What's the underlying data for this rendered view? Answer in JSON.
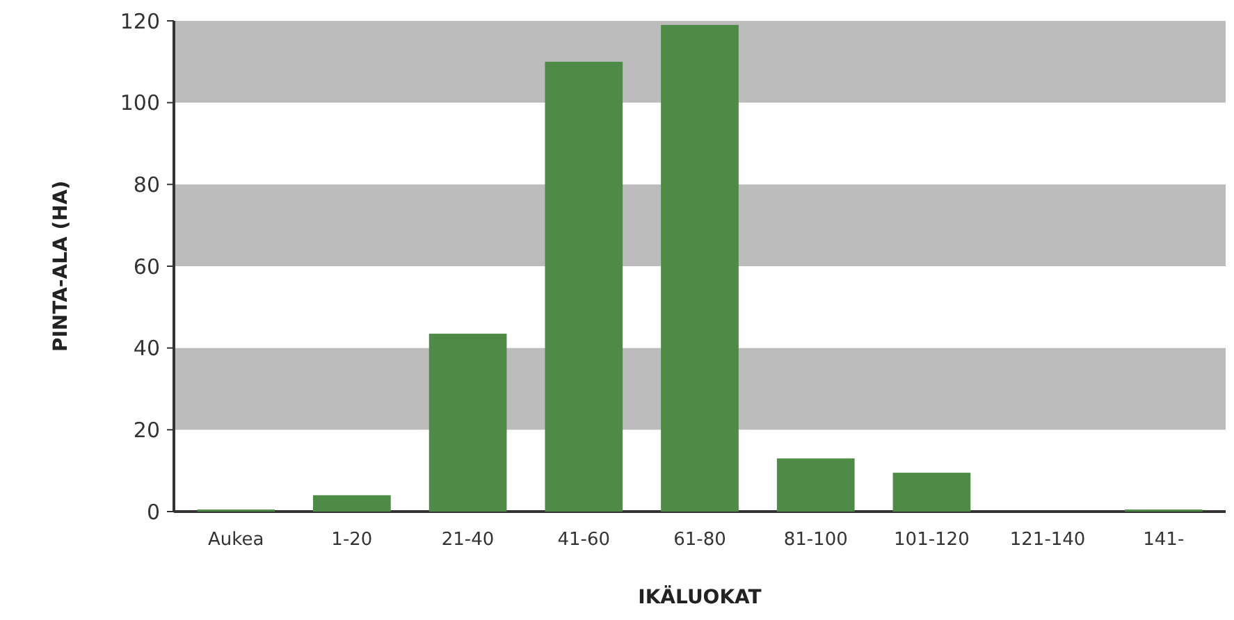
{
  "chart_data": {
    "type": "bar",
    "xlabel": "IKÄLUOKAT",
    "ylabel": "PINTA-ALA (HA)",
    "categories": [
      "Aukea",
      "1-20",
      "21-40",
      "41-60",
      "61-80",
      "81-100",
      "101-120",
      "121-140",
      "141-"
    ],
    "values": [
      0.5,
      4,
      43.5,
      110,
      119,
      13,
      9.5,
      0,
      0.5
    ],
    "color": "#4e8b47",
    "ylim": [
      0,
      120
    ],
    "yticks": [
      0,
      20,
      40,
      60,
      80,
      100,
      120
    ],
    "bands": [
      {
        "axis": "y",
        "from": 20,
        "to": 40,
        "color": "#bbbcbb"
      },
      {
        "axis": "y",
        "from": 60,
        "to": 80,
        "color": "#bbbcbb"
      },
      {
        "axis": "y",
        "from": 100,
        "to": 120,
        "color": "#bbbcbb"
      }
    ]
  }
}
